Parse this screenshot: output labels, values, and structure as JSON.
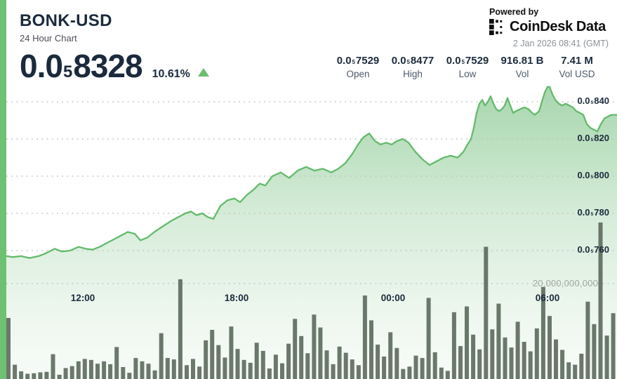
{
  "header": {
    "symbol": "BONK-USD",
    "subtitle": "24 Hour Chart",
    "price": {
      "pre": "0.0",
      "sub": "5",
      "digits": "8328"
    },
    "change_pct": "10.61%",
    "change_direction": "up",
    "powered_by": "Powered by",
    "brand": {
      "name_main": "CoinDesk",
      "name_suffix": "Data"
    },
    "timestamp": "2 Jan 2026 08:41 (GMT)"
  },
  "stats": [
    {
      "value": {
        "pre": "0.0",
        "sub": "5",
        "digits": "7529"
      },
      "label": "Open"
    },
    {
      "value": {
        "pre": "0.0",
        "sub": "5",
        "digits": "8477"
      },
      "label": "High"
    },
    {
      "value": {
        "pre": "0.0",
        "sub": "5",
        "digits": "7529"
      },
      "label": "Low"
    },
    {
      "value": {
        "text": "916.81 B"
      },
      "label": "Vol"
    },
    {
      "value": {
        "text": "7.41 M"
      },
      "label": "Vol USD"
    }
  ],
  "colors": {
    "accent_green": "#6ec073",
    "line_green": "#63ba6c",
    "fill_green": "#5eb468",
    "bar_gray": "#5e6c5f",
    "navy_text": "#1b2a3c",
    "grid_dot": "#c0c4c0",
    "up_triangle": "#6abd6e"
  },
  "chart_data": {
    "type": "area",
    "title": "BONK-USD 24 Hour Chart",
    "price_unit_prefix": "0.0₅",
    "y_axis": {
      "ticks": [
        {
          "pre": "0.0",
          "sub": "5",
          "digits": "840",
          "value": 840
        },
        {
          "pre": "0.0",
          "sub": "5",
          "digits": "820",
          "value": 820
        },
        {
          "pre": "0.0",
          "sub": "5",
          "digits": "800",
          "value": 800
        },
        {
          "pre": "0.0",
          "sub": "5",
          "digits": "780",
          "value": 780
        },
        {
          "pre": "0.0",
          "sub": "5",
          "digits": "760",
          "value": 760
        }
      ]
    },
    "x_axis": {
      "ticks": [
        "12:00",
        "18:00",
        "00:00",
        "06:00"
      ]
    },
    "volume_axis_label": "20,000,000,000",
    "volume_axis_max_billions": 20,
    "summary": {
      "open": "0.0₅7529",
      "high": "0.0₅8477",
      "low": "0.0₅7529",
      "volume": "916.81 B",
      "volume_usd": "7.41 M"
    },
    "price_series": {
      "note": "x in px across 879px-wide chart, value in 0.0_5 units (e.g. 757 = 0.00000757)",
      "points": [
        [
          9,
          757
        ],
        [
          18,
          756.5
        ],
        [
          30,
          757
        ],
        [
          42,
          756
        ],
        [
          55,
          757
        ],
        [
          65,
          758.5
        ],
        [
          78,
          761
        ],
        [
          88,
          759.5
        ],
        [
          100,
          760
        ],
        [
          112,
          762
        ],
        [
          122,
          761
        ],
        [
          132,
          760.5
        ],
        [
          142,
          762
        ],
        [
          152,
          764
        ],
        [
          162,
          766
        ],
        [
          172,
          768
        ],
        [
          182,
          770
        ],
        [
          192,
          769
        ],
        [
          200,
          765.5
        ],
        [
          210,
          767
        ],
        [
          220,
          770
        ],
        [
          232,
          773
        ],
        [
          244,
          776
        ],
        [
          254,
          778
        ],
        [
          264,
          780
        ],
        [
          272,
          781
        ],
        [
          280,
          779
        ],
        [
          288,
          780
        ],
        [
          296,
          778
        ],
        [
          304,
          777
        ],
        [
          314,
          784
        ],
        [
          324,
          787
        ],
        [
          334,
          788
        ],
        [
          342,
          786
        ],
        [
          352,
          790
        ],
        [
          362,
          793
        ],
        [
          370,
          796
        ],
        [
          378,
          795
        ],
        [
          388,
          800
        ],
        [
          400,
          802
        ],
        [
          412,
          799
        ],
        [
          424,
          803
        ],
        [
          436,
          805
        ],
        [
          448,
          803
        ],
        [
          460,
          804
        ],
        [
          472,
          802
        ],
        [
          482,
          804
        ],
        [
          492,
          807
        ],
        [
          502,
          812
        ],
        [
          510,
          817
        ],
        [
          518,
          821
        ],
        [
          526,
          823
        ],
        [
          534,
          819
        ],
        [
          542,
          817
        ],
        [
          550,
          818
        ],
        [
          558,
          817
        ],
        [
          566,
          819
        ],
        [
          574,
          820
        ],
        [
          582,
          818
        ],
        [
          592,
          813
        ],
        [
          602,
          809
        ],
        [
          612,
          806
        ],
        [
          622,
          808
        ],
        [
          632,
          810
        ],
        [
          642,
          811
        ],
        [
          652,
          810
        ],
        [
          660,
          813
        ],
        [
          666,
          817
        ],
        [
          671,
          820
        ],
        [
          675,
          826
        ],
        [
          679,
          834
        ],
        [
          683,
          839
        ],
        [
          687,
          841
        ],
        [
          691,
          838
        ],
        [
          695,
          840
        ],
        [
          699,
          843
        ],
        [
          703,
          839
        ],
        [
          707,
          836
        ],
        [
          711,
          835
        ],
        [
          715,
          836
        ],
        [
          719,
          838
        ],
        [
          723,
          842
        ],
        [
          727,
          838
        ],
        [
          731,
          834
        ],
        [
          735,
          835
        ],
        [
          741,
          836
        ],
        [
          747,
          837
        ],
        [
          753,
          836
        ],
        [
          758,
          834
        ],
        [
          762,
          833
        ],
        [
          768,
          835
        ],
        [
          772,
          840
        ],
        [
          776,
          845
        ],
        [
          780,
          848
        ],
        [
          783,
          848
        ],
        [
          787,
          844
        ],
        [
          791,
          841
        ],
        [
          796,
          839
        ],
        [
          801,
          838
        ],
        [
          806,
          839
        ],
        [
          811,
          838
        ],
        [
          816,
          837
        ],
        [
          821,
          835
        ],
        [
          826,
          834
        ],
        [
          831,
          833
        ],
        [
          836,
          828
        ],
        [
          841,
          826
        ],
        [
          846,
          825
        ],
        [
          851,
          824
        ],
        [
          856,
          828
        ],
        [
          861,
          831
        ],
        [
          866,
          832
        ],
        [
          871,
          833
        ],
        [
          879,
          833
        ]
      ]
    },
    "volume_series": {
      "note": "bar heights in billions, left to right",
      "values": [
        12.8,
        3,
        1.6,
        1.1,
        1.2,
        1.4,
        1.5,
        5.2,
        0.9,
        2.3,
        2.7,
        3.7,
        4.2,
        4,
        3.2,
        3.7,
        3.1,
        6.7,
        2.5,
        1.3,
        4.4,
        3.7,
        3.2,
        1.8,
        9.6,
        4.4,
        4.1,
        20.9,
        2.9,
        4.2,
        2.6,
        8.1,
        10.3,
        7.1,
        4.5,
        11,
        6.3,
        4,
        3.4,
        7.6,
        5.9,
        2.2,
        5.1,
        3.3,
        7.4,
        12.6,
        9,
        5.4,
        13.5,
        10.8,
        6,
        3.1,
        6.8,
        5.5,
        4.1,
        2.9,
        17.5,
        12.3,
        7.2,
        4.7,
        9.8,
        6.5,
        2.1,
        2.6,
        4.9,
        4.4,
        17,
        5.6,
        2.4,
        1.7,
        14,
        6.9,
        15.2,
        9.3,
        6.2,
        27.7,
        10.4,
        15.8,
        8.7,
        6.6,
        12,
        7.8,
        5.8,
        10.6,
        19.3,
        13.2,
        8.3,
        6.1,
        3.5,
        3,
        5.3,
        16.2,
        11.5,
        32.8,
        9.1,
        13.8
      ]
    }
  }
}
